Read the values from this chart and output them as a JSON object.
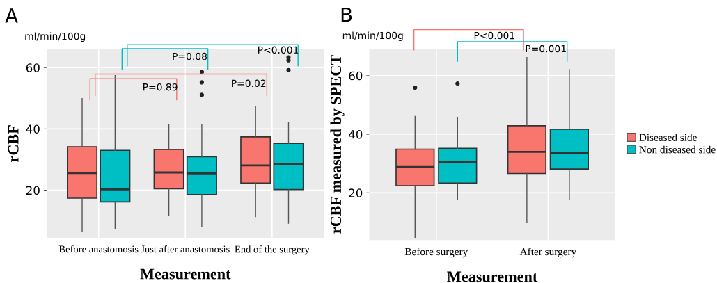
{
  "chart_data": [
    {
      "type": "box",
      "title": "A",
      "xlabel": "Measurement",
      "ylabel": "rCBF",
      "annotations": [
        "ml/min/100g",
        "P=0.89",
        "P=0.02",
        "P=0.08",
        "P<0.001"
      ],
      "categories": [
        "Before anastomosis",
        "Just after anastomosis",
        "End of the surgery"
      ],
      "ylim": [
        4.5,
        66
      ],
      "yticks": [
        20,
        40,
        60
      ],
      "grid": true,
      "series": [
        {
          "color": "#f8766d",
          "boxes": [
            {
              "low": 6.5,
              "q1": 17.4,
              "median": 25.6,
              "q3": 34.2,
              "high": 49.9
            },
            {
              "low": 11.8,
              "q1": 20.5,
              "median": 25.8,
              "q3": 33.3,
              "high": 41.5
            },
            {
              "low": 11.4,
              "q1": 22.3,
              "median": 28.1,
              "q3": 37.4,
              "high": 47.3
            }
          ]
        },
        {
          "color": "#00bfc4",
          "boxes": [
            {
              "low": 7.4,
              "q1": 16.2,
              "median": 20.3,
              "q3": 33.0,
              "high": 57.4
            },
            {
              "low": 8.2,
              "q1": 18.6,
              "median": 25.5,
              "q3": 30.9,
              "high": 41.5,
              "outliers": [
                58.6,
                55.2,
                51.1
              ]
            },
            {
              "low": 9.2,
              "q1": 20.2,
              "median": 28.5,
              "q3": 35.3,
              "high": 42.1,
              "outliers": [
                63.3,
                62.4,
                59.2
              ]
            }
          ]
        }
      ]
    },
    {
      "type": "box",
      "title": "B",
      "xlabel": "Measurement",
      "ylabel": "rCBF measured by SPECT",
      "annotations": [
        "ml/min/100g",
        "P<0.001",
        "P=0.001"
      ],
      "categories": [
        "Before surgery",
        "After surgery"
      ],
      "ylim": [
        3.9,
        69.2
      ],
      "yticks": [
        20,
        40,
        60
      ],
      "grid": true,
      "legend": "right",
      "series": [
        {
          "name": "Diseased side",
          "color": "#f8766d",
          "boxes": [
            {
              "low": 4.7,
              "q1": 22.4,
              "median": 28.8,
              "q3": 34.9,
              "high": 46.1,
              "outliers": [
                55.9
              ]
            },
            {
              "low": 9.9,
              "q1": 26.6,
              "median": 34.0,
              "q3": 42.9,
              "high": 66.2
            }
          ]
        },
        {
          "name": "Non diseased side",
          "color": "#00bfc4",
          "boxes": [
            {
              "low": 17.6,
              "q1": 23.3,
              "median": 30.6,
              "q3": 35.2,
              "high": 45.8,
              "outliers": [
                57.3
              ]
            },
            {
              "low": 17.8,
              "q1": 28.1,
              "median": 33.6,
              "q3": 41.7,
              "high": 62.1
            }
          ]
        }
      ]
    }
  ]
}
